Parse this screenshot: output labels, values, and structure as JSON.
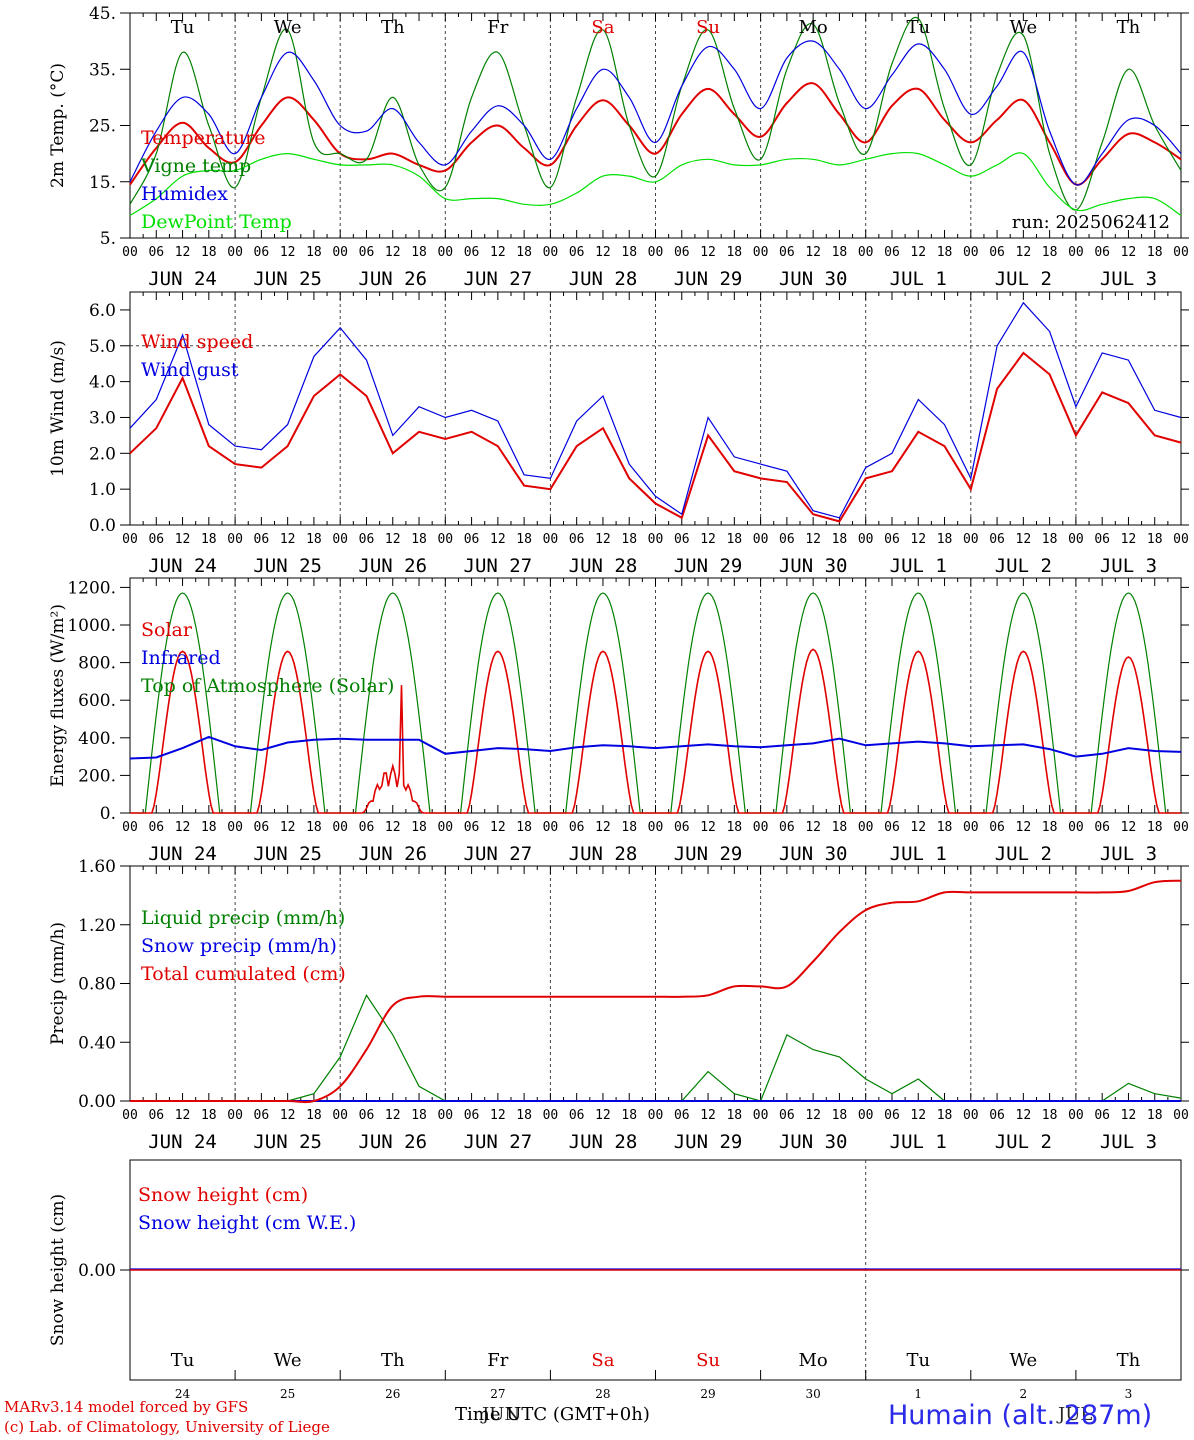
{
  "footer": {
    "credit_line1": "MARv3.14 model forced by GFS",
    "credit_line2": "(c) Lab. of Climatology, University of Liege",
    "xlabel": "Time UTC (GMT+0h)",
    "month_label": "JUN",
    "month_label_2": "JUL",
    "location": "Humain (alt. 287m)"
  },
  "days": {
    "weekdays": [
      "Tu",
      "We",
      "Th",
      "Fr",
      "Sa",
      "Su",
      "Mo",
      "Tu",
      "We",
      "Th"
    ],
    "weekday_colors": [
      "#000000",
      "#000000",
      "#000000",
      "#000000",
      "#e00000",
      "#e00000",
      "#000000",
      "#000000",
      "#000000",
      "#000000"
    ],
    "dates": [
      "JUN 24",
      "JUN 25",
      "JUN 26",
      "JUN 27",
      "JUN 28",
      "JUN 29",
      "JUN 30",
      "JUL  1",
      "JUL  2",
      "JUL  3"
    ],
    "day_numbers": [
      "24",
      "25",
      "26",
      "27",
      "28",
      "29",
      "30",
      "1",
      "2",
      "3"
    ],
    "hour_ticks": [
      "00",
      "06",
      "12",
      "18"
    ],
    "final_tick": "00"
  },
  "colors": {
    "red": "#e00000",
    "green": "#008000",
    "blue": "#0000e0",
    "lightgreen": "#00e000"
  },
  "chart_data": [
    {
      "type": "line",
      "ylabel": "2m Temp. (°C)",
      "ylim": [
        5,
        45
      ],
      "yticks": [
        "5.",
        "15.",
        "25.",
        "35.",
        "45."
      ],
      "annotation": "run: 2025062412",
      "x_unit": "hours since 2025-06-24 00 UTC",
      "x": [
        0,
        6,
        12,
        18,
        24,
        30,
        36,
        42,
        48,
        54,
        60,
        66,
        72,
        78,
        84,
        90,
        96,
        102,
        108,
        114,
        120,
        126,
        132,
        138,
        144,
        150,
        156,
        162,
        168,
        174,
        180,
        186,
        192,
        198,
        204,
        210,
        216,
        222,
        228,
        234,
        240
      ],
      "series": [
        {
          "name": "Temperature",
          "color": "#e00000",
          "values": [
            14.5,
            21,
            25.5,
            21,
            18.5,
            25,
            30,
            26,
            20,
            19,
            20,
            18,
            17,
            22,
            25,
            21,
            18,
            25,
            29.5,
            25,
            20,
            27,
            31.5,
            27,
            23,
            29,
            32.5,
            27,
            22,
            28.5,
            31.5,
            26,
            22,
            26,
            29.5,
            22,
            14.5,
            19,
            23.5,
            22,
            19
          ]
        },
        {
          "name": "Vigne temp",
          "color": "#008000",
          "values": [
            11,
            20,
            38,
            25,
            14,
            30,
            42,
            22,
            20,
            19,
            30,
            18,
            14,
            30,
            38,
            25,
            14,
            30,
            42,
            25,
            16,
            32,
            42,
            28,
            19,
            35,
            43,
            29,
            20,
            36,
            44,
            28,
            18,
            34,
            41,
            20,
            10,
            22,
            35,
            25,
            17
          ]
        },
        {
          "name": "Humidex",
          "color": "#0000e0",
          "values": [
            15,
            24,
            30,
            27,
            20,
            30,
            38,
            33,
            25,
            24,
            28,
            22,
            18,
            24,
            28.5,
            25,
            19,
            28,
            35,
            30,
            22,
            32,
            39,
            35,
            28,
            37,
            40,
            35,
            28,
            34,
            39.5,
            35,
            27,
            32,
            38,
            24,
            14.5,
            20,
            26,
            25,
            20
          ]
        },
        {
          "name": "DewPoint Temp",
          "color": "#00e000",
          "values": [
            9,
            12,
            16,
            17,
            17,
            19,
            20,
            19,
            18,
            18,
            18,
            16,
            12,
            12,
            12,
            11,
            11,
            13,
            16,
            16,
            15,
            18,
            19,
            18,
            18,
            19,
            19,
            18,
            19,
            20,
            20,
            18,
            16,
            18,
            20,
            14,
            10,
            11,
            12,
            12,
            9
          ]
        }
      ]
    },
    {
      "type": "line",
      "ylabel": "10m Wind (m/s)",
      "ylim": [
        0,
        6.5
      ],
      "yticks": [
        "0.0",
        "1.0",
        "2.0",
        "3.0",
        "4.0",
        "5.0",
        "6.0"
      ],
      "reference_line": 5,
      "x_unit": "hours since 2025-06-24 00 UTC",
      "x": [
        0,
        6,
        12,
        18,
        24,
        30,
        36,
        42,
        48,
        54,
        60,
        66,
        72,
        78,
        84,
        90,
        96,
        102,
        108,
        114,
        120,
        126,
        132,
        138,
        144,
        150,
        156,
        162,
        168,
        174,
        180,
        186,
        192,
        198,
        204,
        210,
        216,
        222,
        228,
        234,
        240
      ],
      "series": [
        {
          "name": "Wind speed",
          "color": "#e00000",
          "values": [
            2.0,
            2.7,
            4.1,
            2.2,
            1.7,
            1.6,
            2.2,
            3.6,
            4.2,
            3.6,
            2.0,
            2.6,
            2.4,
            2.6,
            2.2,
            1.1,
            1.0,
            2.2,
            2.7,
            1.3,
            0.6,
            0.2,
            2.5,
            1.5,
            1.3,
            1.2,
            0.3,
            0.1,
            1.3,
            1.5,
            2.6,
            2.2,
            1.0,
            3.8,
            4.8,
            4.2,
            2.5,
            3.7,
            3.4,
            2.5,
            2.3
          ]
        },
        {
          "name": "Wind gust",
          "color": "#0000e0",
          "values": [
            2.7,
            3.5,
            5.3,
            2.8,
            2.2,
            2.1,
            2.8,
            4.7,
            5.5,
            4.6,
            2.5,
            3.3,
            3.0,
            3.2,
            2.9,
            1.4,
            1.3,
            2.9,
            3.6,
            1.7,
            0.8,
            0.3,
            3.0,
            1.9,
            1.7,
            1.5,
            0.4,
            0.2,
            1.6,
            2.0,
            3.5,
            2.8,
            1.3,
            5.0,
            6.2,
            5.4,
            3.3,
            4.8,
            4.6,
            3.2,
            3.0
          ]
        }
      ]
    },
    {
      "type": "line",
      "ylabel": "Energy fluxes (W/m²)",
      "ylim": [
        0,
        1200
      ],
      "yticks": [
        "0.",
        "200.",
        "400.",
        "600.",
        "800.",
        "1000.",
        "1200."
      ],
      "x_unit": "hours since 2025-06-24 00 UTC",
      "series": [
        {
          "name": "Solar",
          "color": "#e00000",
          "peaks": [
            860,
            860,
            260,
            860,
            860,
            860,
            870,
            860,
            860,
            830
          ],
          "cloudy_day_index": 2,
          "cloudy_day_spike": 680
        },
        {
          "name": "Infrared",
          "color": "#0000e0",
          "x": [
            0,
            6,
            12,
            18,
            24,
            30,
            36,
            42,
            48,
            54,
            60,
            66,
            72,
            78,
            84,
            90,
            96,
            102,
            108,
            114,
            120,
            126,
            132,
            138,
            144,
            150,
            156,
            162,
            168,
            174,
            180,
            186,
            192,
            198,
            204,
            210,
            216,
            222,
            228,
            234,
            240
          ],
          "values": [
            290,
            295,
            345,
            405,
            355,
            335,
            375,
            390,
            395,
            390,
            390,
            390,
            315,
            330,
            345,
            340,
            330,
            350,
            360,
            355,
            345,
            355,
            365,
            355,
            350,
            360,
            370,
            395,
            360,
            370,
            380,
            370,
            355,
            360,
            365,
            340,
            300,
            315,
            345,
            330,
            325
          ]
        },
        {
          "name": "Top of Atmosphere (Solar)",
          "color": "#008000",
          "peak": 1170
        }
      ]
    },
    {
      "type": "line",
      "ylabel": "Precip (mm/h)",
      "ylim": [
        0,
        1.6
      ],
      "yticks": [
        "0.00",
        "0.40",
        "0.80",
        "1.20",
        "1.60"
      ],
      "x_unit": "hours since 2025-06-24 00 UTC",
      "x": [
        0,
        6,
        12,
        18,
        24,
        30,
        36,
        42,
        48,
        54,
        60,
        66,
        72,
        78,
        84,
        90,
        96,
        102,
        108,
        114,
        120,
        126,
        132,
        138,
        144,
        150,
        156,
        162,
        168,
        174,
        180,
        186,
        192,
        198,
        204,
        210,
        216,
        222,
        228,
        234,
        240
      ],
      "series": [
        {
          "name": "Liquid precip (mm/h)",
          "color": "#008000",
          "values": [
            0,
            0,
            0,
            0,
            0,
            0,
            0,
            0.05,
            0.3,
            0.72,
            0.45,
            0.1,
            0,
            0,
            0,
            0,
            0,
            0,
            0,
            0,
            0,
            0,
            0.2,
            0.05,
            0,
            0.45,
            0.35,
            0.3,
            0.15,
            0.05,
            0.15,
            0,
            0,
            0,
            0,
            0,
            0,
            0,
            0.12,
            0.05,
            0.02
          ]
        },
        {
          "name": "Snow precip (mm/h)",
          "color": "#0000e0",
          "values": [
            0,
            0,
            0,
            0,
            0,
            0,
            0,
            0,
            0,
            0,
            0,
            0,
            0,
            0,
            0,
            0,
            0,
            0,
            0,
            0,
            0,
            0,
            0,
            0,
            0,
            0,
            0,
            0,
            0,
            0,
            0,
            0,
            0,
            0,
            0,
            0,
            0,
            0,
            0,
            0,
            0
          ]
        },
        {
          "name": "Total cumulated (cm)",
          "color": "#e00000",
          "values": [
            0,
            0,
            0,
            0,
            0,
            0,
            0,
            0,
            0.1,
            0.35,
            0.65,
            0.71,
            0.71,
            0.71,
            0.71,
            0.71,
            0.71,
            0.71,
            0.71,
            0.71,
            0.71,
            0.71,
            0.72,
            0.78,
            0.78,
            0.78,
            0.95,
            1.15,
            1.3,
            1.35,
            1.36,
            1.42,
            1.42,
            1.42,
            1.42,
            1.42,
            1.42,
            1.42,
            1.43,
            1.49,
            1.5
          ]
        }
      ]
    },
    {
      "type": "line",
      "ylabel": "Snow height (cm)",
      "yticks": [
        "0.00"
      ],
      "x_unit": "hours since 2025-06-24 00 UTC",
      "series": [
        {
          "name": "Snow height (cm)",
          "color": "#e00000",
          "values": [
            0,
            0
          ]
        },
        {
          "name": "Snow height (cm W.E.)",
          "color": "#0000e0",
          "values": [
            0,
            0
          ]
        }
      ]
    }
  ]
}
